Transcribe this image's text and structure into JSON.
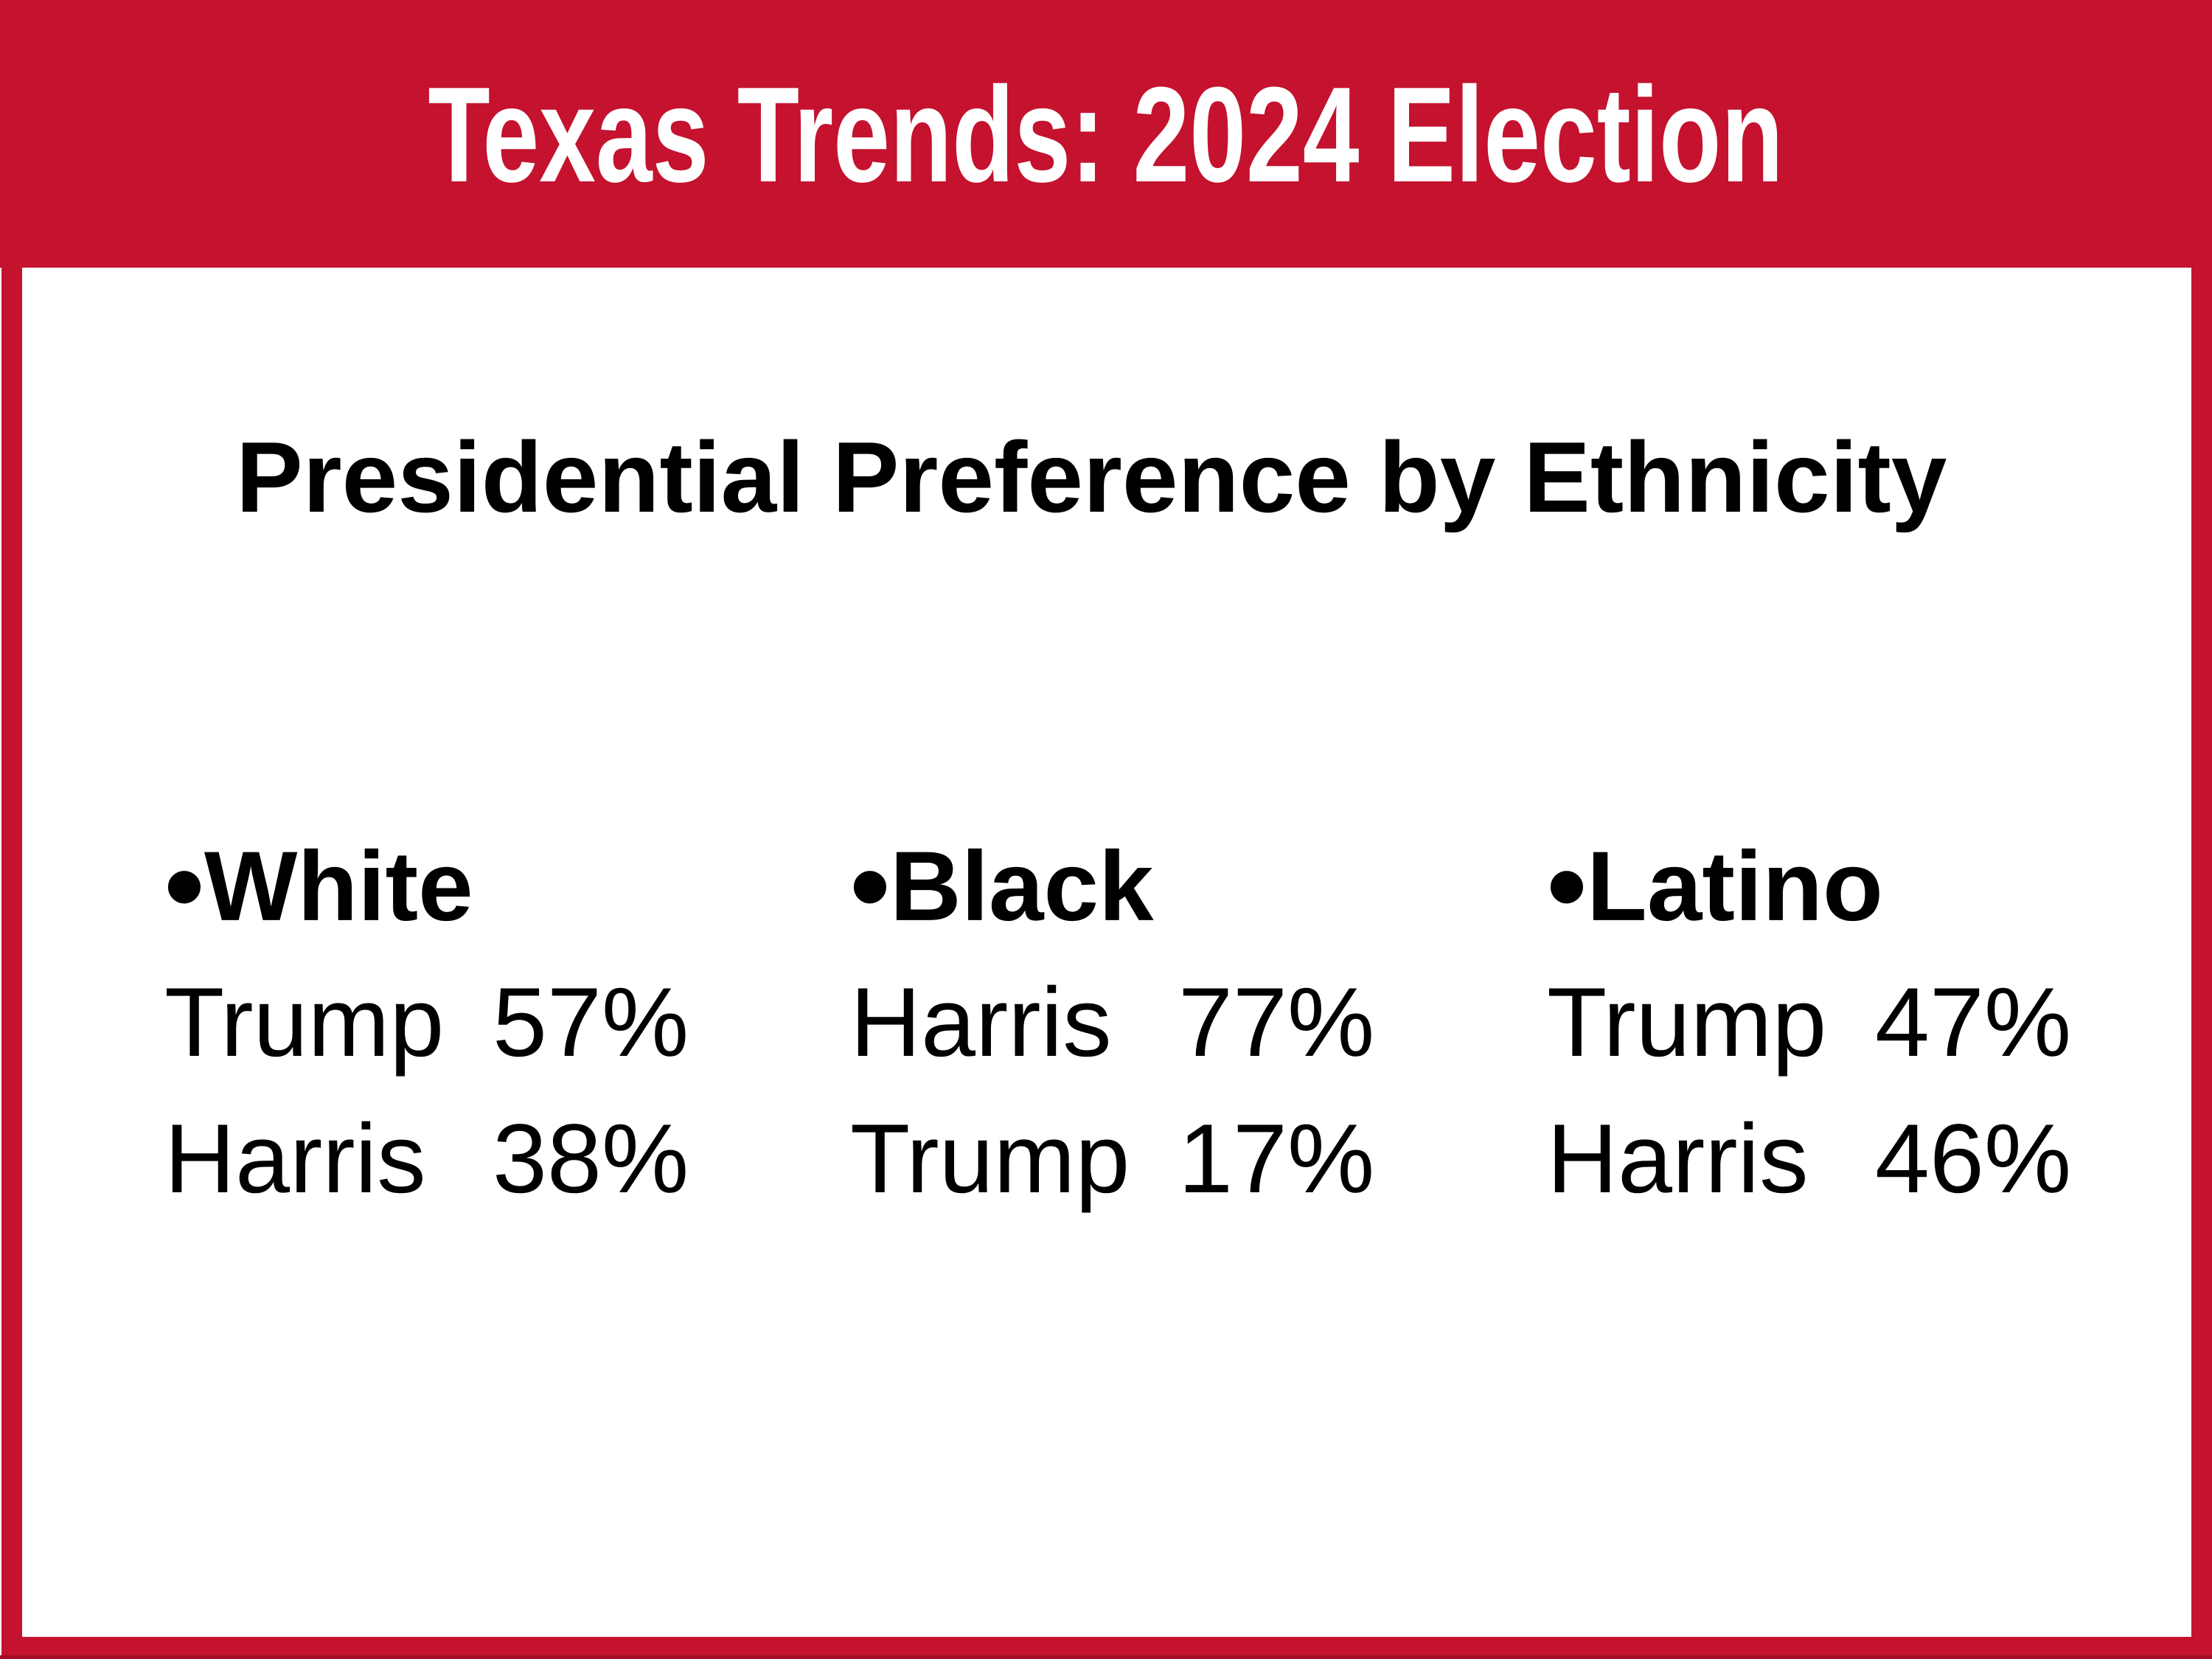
{
  "slide": {
    "header": {
      "title": "Texas Trends: 2024 Election"
    },
    "heading": "Presidential Preference by Ethnicity",
    "groups": [
      {
        "bullet": "•",
        "name": "White",
        "rows": [
          {
            "candidate": "Trump",
            "value": "57%"
          },
          {
            "candidate": "Harris",
            "value": "38%"
          }
        ]
      },
      {
        "bullet": "•",
        "name": "Black",
        "rows": [
          {
            "candidate": "Harris",
            "value": "77%"
          },
          {
            "candidate": "Trump",
            "value": "17%"
          }
        ]
      },
      {
        "bullet": "•",
        "name": "Latino",
        "rows": [
          {
            "candidate": "Trump",
            "value": "47%"
          },
          {
            "candidate": "Harris",
            "value": "46%"
          }
        ]
      }
    ],
    "colors": {
      "accent_red": "#C4122F",
      "bottom_edge_red": "#A50D27",
      "text": "#000000",
      "title_text": "#FFFFFF",
      "background": "#FFFFFF"
    }
  }
}
